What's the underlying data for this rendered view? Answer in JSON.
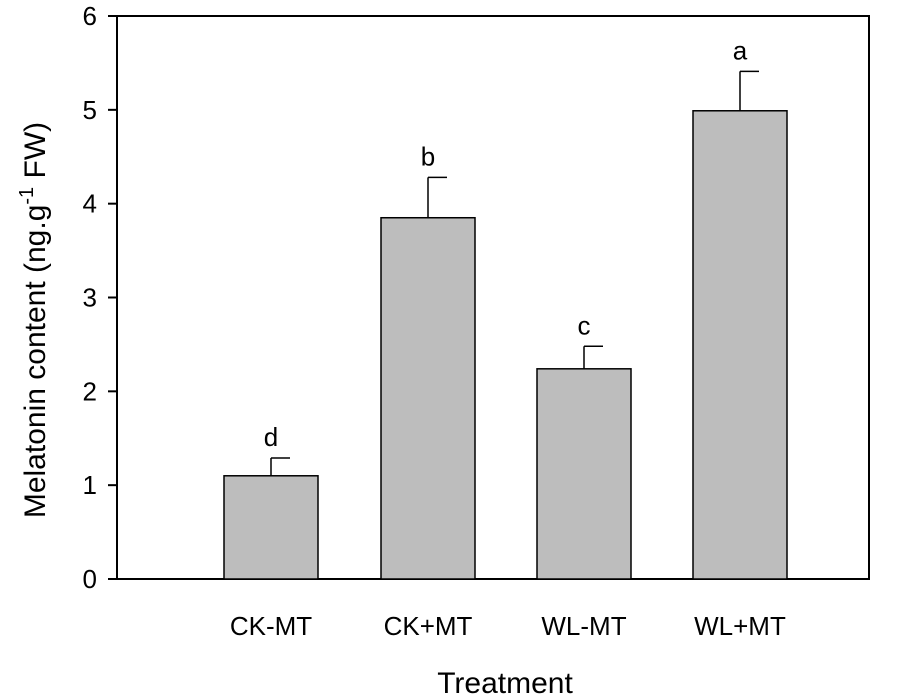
{
  "chart_data": {
    "type": "bar",
    "xlabel": "Treatment",
    "ylabel": {
      "prefix": "Melatonin content (ng.g",
      "superscript": "-1",
      "suffix": " FW)"
    },
    "ylim": [
      0,
      6
    ],
    "yticks": [
      0,
      1,
      2,
      3,
      4,
      5,
      6
    ],
    "categories": [
      "CK-MT",
      "CK+MT",
      "WL-MT",
      "WL+MT"
    ],
    "values": [
      1.1,
      3.85,
      2.24,
      4.99
    ],
    "errors": [
      0.19,
      0.43,
      0.24,
      0.42
    ],
    "significance_letters": [
      "d",
      "b",
      "c",
      "a"
    ],
    "grid": false,
    "legend": "none",
    "colors": {
      "bar_fill": "#bdbdbd",
      "bar_stroke": "#000000",
      "axis": "#000000"
    }
  }
}
